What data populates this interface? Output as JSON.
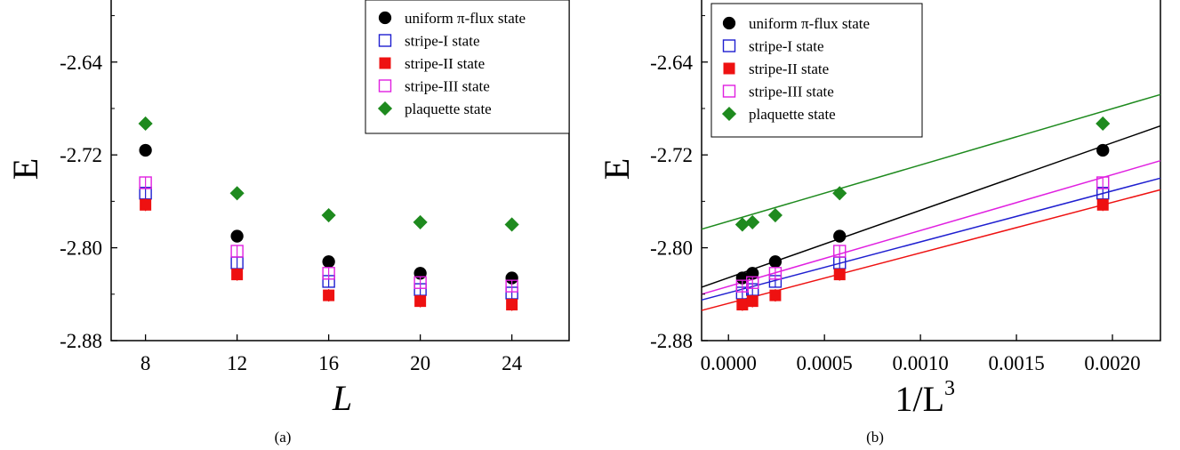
{
  "panels": [
    {
      "caption": "(a)",
      "ylabel": "E",
      "xlabel": "L"
    },
    {
      "caption": "(b)",
      "ylabel": "E",
      "xlabel_main": "1/L",
      "xlabel_sup": "3"
    }
  ],
  "legend": [
    {
      "label": "uniform π-flux state",
      "marker": "filled-circle",
      "color": "#000000"
    },
    {
      "label": "stripe-I state",
      "marker": "open-square",
      "color": "#1f1fd0"
    },
    {
      "label": "stripe-II state",
      "marker": "filled-square",
      "color": "#ee1111"
    },
    {
      "label": "stripe-III state",
      "marker": "open-square",
      "color": "#e020e0"
    },
    {
      "label": "plaquette state",
      "marker": "filled-diamond",
      "color": "#1e8a1e"
    }
  ],
  "chart_data": [
    {
      "type": "scatter",
      "xlabel": "L",
      "ylabel": "E",
      "xlim": [
        6.5,
        26.5
      ],
      "ylim": [
        -2.88,
        -2.585
      ],
      "xticks": [
        "8",
        "12",
        "16",
        "20",
        "24"
      ],
      "yticks": [
        "-2.64",
        "-2.72",
        "-2.80",
        "-2.88"
      ],
      "x": [
        8,
        12,
        16,
        20,
        24
      ],
      "series": [
        {
          "name": "uniform π-flux state",
          "values": [
            -2.716,
            -2.79,
            -2.812,
            -2.822,
            -2.826
          ]
        },
        {
          "name": "stripe-I state",
          "values": [
            -2.753,
            -2.813,
            -2.829,
            -2.836,
            -2.839
          ]
        },
        {
          "name": "stripe-II state",
          "values": [
            -2.763,
            -2.823,
            -2.841,
            -2.846,
            -2.849
          ]
        },
        {
          "name": "stripe-III state",
          "values": [
            -2.744,
            -2.803,
            -2.822,
            -2.83,
            -2.833
          ]
        },
        {
          "name": "plaquette state",
          "values": [
            -2.693,
            -2.753,
            -2.772,
            -2.778,
            -2.78
          ]
        }
      ]
    },
    {
      "type": "scatter",
      "xlabel": "1/L^3",
      "ylabel": "E",
      "xlim": [
        -0.00014,
        0.00225
      ],
      "ylim": [
        -2.88,
        -2.585
      ],
      "xticks": [
        "0.0000",
        "0.0005",
        "0.0010",
        "0.0015",
        "0.0020"
      ],
      "yticks": [
        "-2.64",
        "-2.72",
        "-2.80",
        "-2.88"
      ],
      "x": [
        7.23e-05,
        0.000125,
        0.000244,
        0.000579,
        0.00195
      ],
      "series": [
        {
          "name": "uniform π-flux state",
          "values": [
            -2.826,
            -2.822,
            -2.812,
            -2.79,
            -2.716
          ]
        },
        {
          "name": "stripe-I state",
          "values": [
            -2.839,
            -2.836,
            -2.829,
            -2.813,
            -2.753
          ]
        },
        {
          "name": "stripe-II state",
          "values": [
            -2.849,
            -2.846,
            -2.841,
            -2.823,
            -2.763
          ]
        },
        {
          "name": "stripe-III state",
          "values": [
            -2.833,
            -2.83,
            -2.822,
            -2.803,
            -2.744
          ]
        },
        {
          "name": "plaquette state",
          "values": [
            -2.78,
            -2.778,
            -2.772,
            -2.753,
            -2.693
          ]
        }
      ],
      "fits": [
        {
          "name": "uniform π-flux state",
          "y0": -2.834,
          "y_end": -2.695,
          "x_end": 0.00225
        },
        {
          "name": "stripe-I state",
          "y0": -2.845,
          "y_end": -2.74,
          "x_end": 0.00225
        },
        {
          "name": "stripe-II state",
          "y0": -2.854,
          "y_end": -2.75,
          "x_end": 0.00225
        },
        {
          "name": "stripe-III state",
          "y0": -2.84,
          "y_end": -2.725,
          "x_end": 0.00225
        },
        {
          "name": "plaquette state",
          "y0": -2.784,
          "y_end": -2.668,
          "x_end": 0.00225
        }
      ]
    }
  ]
}
